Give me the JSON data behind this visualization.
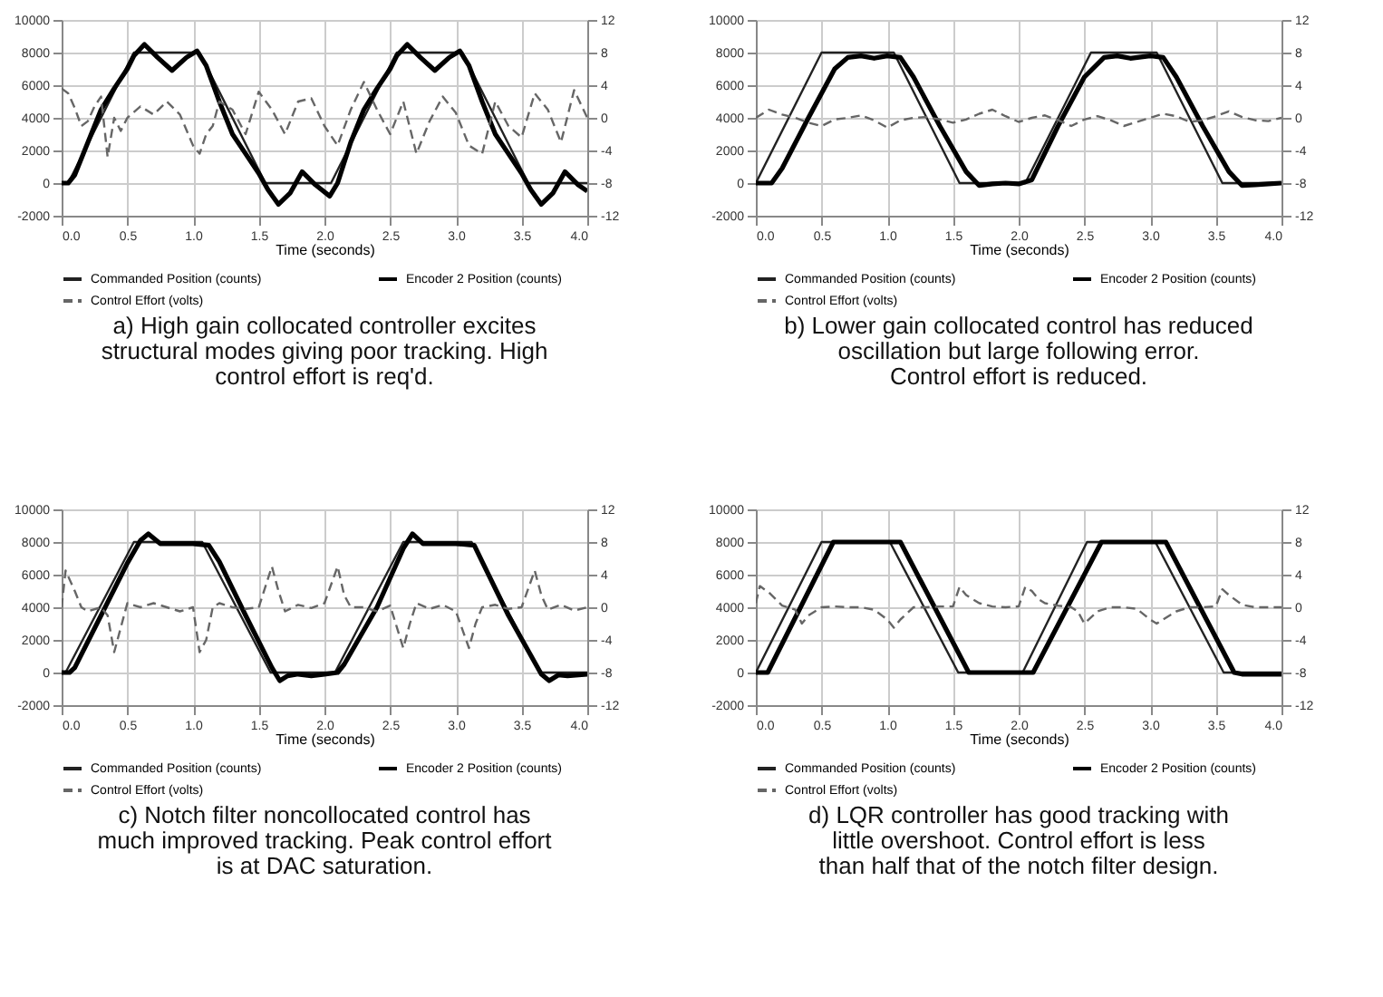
{
  "chart_data": [
    {
      "type": "line",
      "xlabel": "Time (seconds)",
      "annotations": [
        "a) High gain collocated controller excites structural modes giving poor tracking. High control effort is req'd."
      ],
      "xlim": [
        0,
        4
      ],
      "xticks": [
        {
          "value": 0,
          "label": "0.0"
        },
        {
          "value": 0.5,
          "label": "0.5"
        },
        {
          "value": 1,
          "label": "1.0"
        },
        {
          "value": 1.5,
          "label": "1.5"
        },
        {
          "value": 2,
          "label": "2.0"
        },
        {
          "value": 2.5,
          "label": "2.5"
        },
        {
          "value": 3,
          "label": "3.0"
        },
        {
          "value": 3.5,
          "label": "3.5"
        },
        {
          "value": 4,
          "label": "4.0"
        }
      ],
      "ylim": [
        -2000,
        10000
      ],
      "yticks": [
        -2000,
        0,
        2000,
        4000,
        6000,
        8000,
        10000
      ],
      "y2lim": [
        -12,
        12
      ],
      "y2ticks": [
        -12,
        -8,
        -4,
        0,
        4,
        8,
        12
      ],
      "grid": true,
      "legend": "bottom",
      "series": [
        {
          "name": "Commanded Position (counts)",
          "color": "#222222",
          "line_style": "solid",
          "x": [
            0,
            0.05,
            0.55,
            1.05,
            1.55,
            2.05,
            2.55,
            3.05,
            3.55,
            4
          ],
          "values": [
            0,
            0,
            8000,
            8000,
            0,
            0,
            8000,
            8000,
            0,
            0
          ]
        },
        {
          "name": "Encoder 2 Position (counts)",
          "color": "#000000",
          "line_style": "solid",
          "x": [
            0,
            0.05,
            0.1,
            0.2,
            0.3,
            0.4,
            0.5,
            0.55,
            0.63,
            0.73,
            0.84,
            0.95,
            1.03,
            1.1,
            1.2,
            1.3,
            1.4,
            1.5,
            1.57,
            1.65,
            1.74,
            1.83,
            1.93,
            2.04,
            2.1,
            2.2,
            2.3,
            2.4,
            2.5,
            2.55,
            2.63,
            2.73,
            2.84,
            2.95,
            3.03,
            3.1,
            3.2,
            3.3,
            3.4,
            3.5,
            3.57,
            3.65,
            3.74,
            3.83,
            3.93,
            4
          ],
          "values": [
            0,
            0,
            500,
            2500,
            4500,
            5800,
            7000,
            7800,
            8500,
            7700,
            6900,
            7700,
            8100,
            7200,
            5000,
            3000,
            1800,
            600,
            -400,
            -1300,
            -600,
            700,
            -100,
            -800,
            0,
            2500,
            4500,
            5800,
            7000,
            7800,
            8500,
            7700,
            6900,
            7700,
            8100,
            7200,
            5000,
            3000,
            1800,
            600,
            -400,
            -1300,
            -600,
            700,
            -100,
            -500
          ]
        },
        {
          "name": "Control Effort (volts)",
          "color": "#666666",
          "line_style": "dashed",
          "axis": "y2",
          "x": [
            0,
            0.05,
            0.1,
            0.15,
            0.2,
            0.25,
            0.3,
            0.35,
            0.4,
            0.45,
            0.5,
            0.6,
            0.7,
            0.8,
            0.9,
            1,
            1.05,
            1.1,
            1.15,
            1.2,
            1.3,
            1.4,
            1.5,
            1.6,
            1.7,
            1.8,
            1.9,
            2,
            2.1,
            2.2,
            2.3,
            2.4,
            2.5,
            2.6,
            2.7,
            2.8,
            2.9,
            3,
            3.1,
            3.2,
            3.3,
            3.4,
            3.5,
            3.6,
            3.7,
            3.8,
            3.9,
            4
          ],
          "values": [
            3.6,
            3,
            1.2,
            -1,
            -0.4,
            1.4,
            2.6,
            -4.8,
            0,
            -1.6,
            0,
            1.4,
            0.4,
            2,
            0.4,
            -3.4,
            -4.4,
            -2,
            -1,
            2,
            1,
            -2,
            3.2,
            1,
            -2,
            2,
            2.4,
            -1,
            -3.4,
            1,
            4.4,
            1,
            -2,
            2,
            -4.4,
            -0.4,
            2.6,
            0.6,
            -3.4,
            -4.4,
            2,
            -1,
            -2.4,
            3,
            1,
            -3,
            3.4,
            0
          ]
        }
      ]
    },
    {
      "type": "line",
      "xlabel": "Time (seconds)",
      "annotations": [
        "b) Lower gain collocated control has reduced oscillation but large following error. Control effort is reduced."
      ],
      "xlim": [
        0,
        4
      ],
      "xticks": [
        {
          "value": 0,
          "label": "0.0"
        },
        {
          "value": 0.5,
          "label": "0.5"
        },
        {
          "value": 1,
          "label": "1.0"
        },
        {
          "value": 1.5,
          "label": "1.5"
        },
        {
          "value": 2,
          "label": "2.0"
        },
        {
          "value": 2.5,
          "label": "2.5"
        },
        {
          "value": 3,
          "label": "3.0"
        },
        {
          "value": 3.5,
          "label": "3.5"
        },
        {
          "value": 4,
          "label": "4.0"
        }
      ],
      "ylim": [
        -2000,
        10000
      ],
      "yticks": [
        -2000,
        0,
        2000,
        4000,
        6000,
        8000,
        10000
      ],
      "y2lim": [
        -12,
        12
      ],
      "y2ticks": [
        -12,
        -8,
        -4,
        0,
        4,
        8,
        12
      ],
      "grid": true,
      "legend": "bottom",
      "series": [
        {
          "name": "Commanded Position (counts)",
          "color": "#222222",
          "line_style": "solid",
          "x": [
            0,
            0.5,
            1.05,
            1.55,
            2.05,
            2.55,
            3.05,
            3.55,
            4
          ],
          "values": [
            0,
            8000,
            8000,
            0,
            0,
            8000,
            8000,
            0,
            0
          ]
        },
        {
          "name": "Encoder 2 Position (counts)",
          "color": "#000000",
          "line_style": "solid",
          "x": [
            0,
            0.12,
            0.2,
            0.4,
            0.6,
            0.7,
            0.8,
            0.9,
            1,
            1.1,
            1.2,
            1.4,
            1.6,
            1.7,
            1.8,
            1.9,
            2,
            2.1,
            2.3,
            2.5,
            2.65,
            2.75,
            2.85,
            3,
            3.1,
            3.2,
            3.4,
            3.6,
            3.7,
            3.8,
            3.9,
            4
          ],
          "values": [
            0,
            0,
            900,
            4000,
            7000,
            7700,
            7800,
            7650,
            7800,
            7700,
            6500,
            3500,
            700,
            -150,
            -50,
            0,
            -50,
            200,
            3500,
            6500,
            7700,
            7800,
            7650,
            7800,
            7700,
            6500,
            3500,
            700,
            -150,
            -100,
            -50,
            0
          ]
        },
        {
          "name": "Control Effort (volts)",
          "color": "#666666",
          "line_style": "dashed",
          "axis": "y2",
          "x": [
            0,
            0.1,
            0.2,
            0.3,
            0.4,
            0.5,
            0.6,
            0.7,
            0.8,
            0.9,
            1,
            1.1,
            1.2,
            1.3,
            1.4,
            1.5,
            1.6,
            1.7,
            1.8,
            1.9,
            2,
            2.1,
            2.2,
            2.3,
            2.4,
            2.5,
            2.6,
            2.7,
            2.8,
            2.9,
            3,
            3.1,
            3.2,
            3.3,
            3.4,
            3.5,
            3.6,
            3.7,
            3.8,
            3.9,
            4
          ],
          "values": [
            0,
            1,
            0.4,
            0,
            -0.6,
            -1,
            -0.2,
            0,
            0.3,
            -0.3,
            -1.2,
            -0.3,
            0,
            0.1,
            -0.2,
            -0.6,
            -0.2,
            0.5,
            1,
            0.2,
            -0.5,
            0,
            0.3,
            -0.3,
            -1,
            -0.2,
            0.2,
            -0.3,
            -1,
            -0.5,
            0,
            0.5,
            0.2,
            -0.5,
            -0.3,
            0.2,
            0.8,
            0.1,
            -0.3,
            -0.4,
            0
          ]
        }
      ]
    },
    {
      "type": "line",
      "xlabel": "Time (seconds)",
      "annotations": [
        "c) Notch filter noncollocated control has much improved tracking. Peak control effort is at DAC saturation."
      ],
      "xlim": [
        0,
        4
      ],
      "xticks": [
        {
          "value": 0,
          "label": "0.0"
        },
        {
          "value": 0.5,
          "label": "0.5"
        },
        {
          "value": 1,
          "label": "1.0"
        },
        {
          "value": 1.5,
          "label": "1.5"
        },
        {
          "value": 2,
          "label": "2.0"
        },
        {
          "value": 2.5,
          "label": "2.5"
        },
        {
          "value": 3,
          "label": "3.0"
        },
        {
          "value": 3.5,
          "label": "3.5"
        },
        {
          "value": 4,
          "label": "4.0"
        }
      ],
      "ylim": [
        -2000,
        10000
      ],
      "yticks": [
        -2000,
        0,
        2000,
        4000,
        6000,
        8000,
        10000
      ],
      "y2lim": [
        -12,
        12
      ],
      "y2ticks": [
        -12,
        -8,
        -4,
        0,
        4,
        8,
        12
      ],
      "grid": true,
      "legend": "bottom",
      "series": [
        {
          "name": "Commanded Position (counts)",
          "color": "#222222",
          "line_style": "solid",
          "x": [
            0,
            0.03,
            0.55,
            1.07,
            1.59,
            2.08,
            2.6,
            3.12,
            3.64,
            4
          ],
          "values": [
            0,
            0,
            8000,
            8000,
            0,
            0,
            8000,
            8000,
            0,
            0
          ]
        },
        {
          "name": "Encoder 2 Position (counts)",
          "color": "#000000",
          "line_style": "solid",
          "x": [
            0,
            0.06,
            0.1,
            0.3,
            0.5,
            0.6,
            0.66,
            0.75,
            0.85,
            1,
            1.12,
            1.2,
            1.4,
            1.6,
            1.66,
            1.72,
            1.8,
            1.9,
            2,
            2.1,
            2.15,
            2.4,
            2.6,
            2.67,
            2.75,
            2.9,
            3,
            3.14,
            3.2,
            3.4,
            3.65,
            3.71,
            3.78,
            3.85,
            4
          ],
          "values": [
            0,
            0,
            300,
            3500,
            6700,
            8100,
            8500,
            7900,
            7900,
            7900,
            7800,
            6800,
            3500,
            300,
            -500,
            -200,
            -100,
            -200,
            -100,
            0,
            500,
            4000,
            7600,
            8500,
            7900,
            7900,
            7900,
            7800,
            6800,
            3500,
            -100,
            -500,
            -150,
            -200,
            -100
          ]
        },
        {
          "name": "Control Effort (volts)",
          "color": "#666666",
          "line_style": "dashed",
          "axis": "y2",
          "x": [
            0,
            0.03,
            0.1,
            0.15,
            0.2,
            0.3,
            0.35,
            0.4,
            0.45,
            0.5,
            0.6,
            0.7,
            0.8,
            0.9,
            1,
            1.05,
            1.1,
            1.15,
            1.2,
            1.3,
            1.4,
            1.5,
            1.6,
            1.65,
            1.7,
            1.8,
            1.9,
            2,
            2.1,
            2.15,
            2.2,
            2.3,
            2.4,
            2.5,
            2.6,
            2.65,
            2.7,
            2.8,
            2.9,
            3,
            3.1,
            3.15,
            3.2,
            3.3,
            3.4,
            3.5,
            3.6,
            3.65,
            3.7,
            3.8,
            3.9,
            4
          ],
          "values": [
            0,
            4.5,
            2,
            0,
            -0.5,
            0,
            -1,
            -5.5,
            -2.5,
            0.5,
            0,
            0.5,
            0,
            -0.5,
            0,
            -5.5,
            -4,
            0,
            0.5,
            0,
            -0.2,
            0,
            5,
            2,
            -0.5,
            0.3,
            -0.1,
            0.5,
            5,
            1.5,
            0,
            0,
            -0.5,
            0.2,
            -5,
            -2,
            0.5,
            -0.2,
            0.3,
            -0.5,
            -5,
            -2,
            0,
            0.3,
            -0.2,
            0,
            4.5,
            1.5,
            -0.3,
            0.3,
            -0.4,
            0
          ]
        }
      ]
    },
    {
      "type": "line",
      "xlabel": "Time (seconds)",
      "annotations": [
        "d) LQR controller has good tracking with little overshoot. Control effort is less than half that of the notch filter design."
      ],
      "xlim": [
        0,
        4
      ],
      "xticks": [
        {
          "value": 0,
          "label": "0.0"
        },
        {
          "value": 0.5,
          "label": "0.5"
        },
        {
          "value": 1,
          "label": "1.0"
        },
        {
          "value": 1.5,
          "label": "1.5"
        },
        {
          "value": 2,
          "label": "2.0"
        },
        {
          "value": 2.5,
          "label": "2.5"
        },
        {
          "value": 3,
          "label": "3.0"
        },
        {
          "value": 3.5,
          "label": "3.5"
        },
        {
          "value": 4,
          "label": "4.0"
        }
      ],
      "ylim": [
        -2000,
        10000
      ],
      "yticks": [
        -2000,
        0,
        2000,
        4000,
        6000,
        8000,
        10000
      ],
      "y2lim": [
        -12,
        12
      ],
      "y2ticks": [
        -12,
        -8,
        -4,
        0,
        4,
        8,
        12
      ],
      "grid": true,
      "legend": "bottom",
      "series": [
        {
          "name": "Commanded Position (counts)",
          "color": "#222222",
          "line_style": "solid",
          "x": [
            0,
            0.5,
            1.02,
            1.54,
            2.03,
            2.52,
            3.04,
            3.56,
            4
          ],
          "values": [
            0,
            8000,
            8000,
            0,
            0,
            8000,
            8000,
            0,
            0
          ]
        },
        {
          "name": "Encoder 2 Position (counts)",
          "color": "#000000",
          "line_style": "solid",
          "x": [
            0,
            0.09,
            0.59,
            1.1,
            1.62,
            2.11,
            2.63,
            3.12,
            3.64,
            3.7,
            4
          ],
          "values": [
            0,
            0,
            8000,
            8000,
            0,
            0,
            8000,
            8000,
            0,
            -100,
            -100
          ]
        },
        {
          "name": "Control Effort (volts)",
          "color": "#666666",
          "line_style": "dashed",
          "axis": "y2",
          "x": [
            0,
            0.03,
            0.1,
            0.2,
            0.3,
            0.35,
            0.4,
            0.5,
            0.6,
            0.7,
            0.8,
            0.9,
            1,
            1.05,
            1.1,
            1.2,
            1.3,
            1.4,
            1.5,
            1.55,
            1.6,
            1.7,
            1.8,
            1.9,
            2,
            2.05,
            2.1,
            2.15,
            2.2,
            2.3,
            2.4,
            2.45,
            2.5,
            2.6,
            2.7,
            2.8,
            2.9,
            3,
            3.05,
            3.1,
            3.2,
            3.3,
            3.4,
            3.5,
            3.55,
            3.6,
            3.7,
            3.8,
            3.9,
            4
          ],
          "values": [
            0.5,
            2.6,
            1.8,
            0.2,
            -0.3,
            -2,
            -1,
            0,
            0.1,
            0,
            0,
            -0.3,
            -1.5,
            -2.5,
            -1.5,
            0,
            0,
            0.1,
            0.1,
            2.5,
            1.5,
            0.5,
            0.1,
            0,
            0.1,
            2.5,
            2,
            1,
            0.5,
            0.2,
            0,
            -0.5,
            -2,
            -0.5,
            0,
            0,
            -0.2,
            -1.5,
            -2,
            -1.5,
            -0.5,
            0,
            0,
            0.1,
            2.2,
            1.5,
            0.3,
            0,
            0,
            0
          ]
        }
      ]
    }
  ]
}
